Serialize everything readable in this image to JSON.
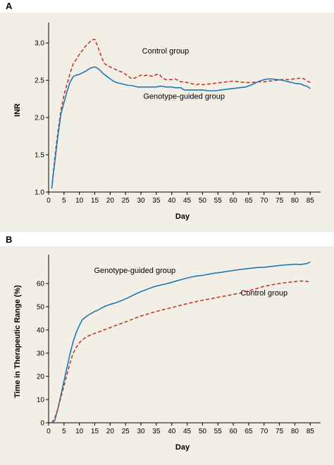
{
  "chart_data": [
    {
      "panel": "A",
      "type": "line",
      "xlabel": "Day",
      "ylabel": "INR",
      "xlim": [
        0,
        87
      ],
      "ylim": [
        1.0,
        3.2
      ],
      "xticks": [
        0,
        5,
        10,
        15,
        20,
        25,
        30,
        35,
        40,
        45,
        50,
        55,
        60,
        65,
        70,
        75,
        80,
        85
      ],
      "yticks": [
        1.0,
        1.5,
        2.0,
        2.5,
        3.0
      ],
      "ytick_labels": [
        "1.0",
        "1.5",
        "2.0",
        "2.5",
        "3.0"
      ],
      "grid": false,
      "series": [
        {
          "name": "Control group",
          "style": "dashed",
          "color": "#c0392b",
          "x": [
            1,
            2,
            3,
            4,
            5,
            6,
            7,
            8,
            9,
            10,
            11,
            12,
            13,
            14,
            15,
            16,
            17,
            18,
            19,
            20,
            21,
            22,
            23,
            24,
            25,
            26,
            27,
            28,
            29,
            30,
            31,
            32,
            33,
            34,
            35,
            36,
            37,
            38,
            39,
            40,
            41,
            42,
            43,
            44,
            45,
            46,
            47,
            48,
            49,
            50,
            52,
            54,
            56,
            58,
            60,
            62,
            64,
            66,
            68,
            70,
            72,
            74,
            76,
            78,
            80,
            82,
            83,
            84,
            85
          ],
          "y": [
            1.05,
            1.45,
            1.8,
            2.1,
            2.3,
            2.45,
            2.6,
            2.72,
            2.78,
            2.85,
            2.9,
            2.96,
            3.0,
            3.04,
            3.05,
            2.95,
            2.83,
            2.73,
            2.7,
            2.68,
            2.66,
            2.64,
            2.62,
            2.61,
            2.58,
            2.55,
            2.52,
            2.53,
            2.55,
            2.57,
            2.56,
            2.57,
            2.56,
            2.55,
            2.58,
            2.58,
            2.53,
            2.51,
            2.51,
            2.51,
            2.52,
            2.5,
            2.48,
            2.48,
            2.47,
            2.46,
            2.45,
            2.44,
            2.45,
            2.44,
            2.45,
            2.46,
            2.47,
            2.48,
            2.49,
            2.48,
            2.47,
            2.47,
            2.48,
            2.48,
            2.49,
            2.5,
            2.51,
            2.51,
            2.52,
            2.53,
            2.52,
            2.49,
            2.47
          ]
        },
        {
          "name": "Genotype-guided group",
          "style": "solid",
          "color": "#1f78b4",
          "x": [
            1,
            2,
            3,
            4,
            5,
            6,
            7,
            8,
            9,
            10,
            11,
            12,
            13,
            14,
            15,
            16,
            17,
            18,
            19,
            20,
            21,
            22,
            23,
            24,
            25,
            26,
            27,
            28,
            29,
            30,
            31,
            32,
            33,
            34,
            35,
            36,
            37,
            38,
            39,
            40,
            41,
            42,
            43,
            44,
            45,
            46,
            47,
            48,
            49,
            50,
            52,
            54,
            56,
            58,
            60,
            62,
            64,
            66,
            68,
            70,
            72,
            74,
            76,
            78,
            80,
            82,
            83,
            84,
            85
          ],
          "y": [
            1.05,
            1.4,
            1.75,
            2.05,
            2.2,
            2.35,
            2.48,
            2.55,
            2.57,
            2.58,
            2.6,
            2.62,
            2.65,
            2.67,
            2.68,
            2.66,
            2.62,
            2.58,
            2.55,
            2.52,
            2.49,
            2.47,
            2.46,
            2.45,
            2.44,
            2.43,
            2.43,
            2.42,
            2.41,
            2.41,
            2.41,
            2.41,
            2.41,
            2.41,
            2.41,
            2.42,
            2.42,
            2.41,
            2.41,
            2.41,
            2.4,
            2.4,
            2.4,
            2.37,
            2.37,
            2.37,
            2.37,
            2.37,
            2.37,
            2.37,
            2.36,
            2.36,
            2.37,
            2.38,
            2.39,
            2.4,
            2.41,
            2.44,
            2.48,
            2.51,
            2.52,
            2.51,
            2.5,
            2.48,
            2.46,
            2.45,
            2.43,
            2.42,
            2.39
          ]
        }
      ],
      "annotations": [
        {
          "text": "Control group",
          "x": 38,
          "y": 2.86
        },
        {
          "text": "Genotype-guided group",
          "x": 44,
          "y": 2.25
        }
      ]
    },
    {
      "panel": "B",
      "type": "line",
      "xlabel": "Day",
      "ylabel": "Time in Therapeutic Range (%)",
      "xlim": [
        0,
        87
      ],
      "ylim": [
        0,
        70
      ],
      "xticks": [
        0,
        5,
        10,
        15,
        20,
        25,
        30,
        35,
        40,
        45,
        50,
        55,
        60,
        65,
        70,
        75,
        80,
        85
      ],
      "yticks": [
        0,
        10,
        20,
        30,
        40,
        50,
        60
      ],
      "ytick_labels": [
        "0",
        "10",
        "20",
        "30",
        "40",
        "50",
        "60"
      ],
      "grid": false,
      "series": [
        {
          "name": "Genotype-guided group",
          "style": "solid",
          "color": "#1f78b4",
          "x": [
            1,
            2,
            3,
            4,
            5,
            6,
            7,
            8,
            9,
            10,
            11,
            12,
            13,
            14,
            15,
            16,
            17,
            18,
            19,
            20,
            22,
            24,
            26,
            28,
            30,
            32,
            34,
            36,
            38,
            40,
            42,
            44,
            46,
            48,
            50,
            52,
            54,
            56,
            58,
            60,
            62,
            64,
            66,
            68,
            70,
            72,
            74,
            76,
            78,
            80,
            82,
            84,
            85
          ],
          "y": [
            0,
            1,
            6,
            12,
            18,
            24,
            30,
            35,
            39,
            42,
            44.5,
            45.5,
            46.5,
            47.2,
            48,
            48.5,
            49.3,
            50,
            50.5,
            51,
            51.8,
            52.8,
            54,
            55.3,
            56.5,
            57.5,
            58.5,
            59.2,
            59.8,
            60.5,
            61.3,
            62,
            62.7,
            63.2,
            63.5,
            64,
            64.5,
            64.8,
            65.2,
            65.6,
            66,
            66.3,
            66.6,
            66.9,
            67,
            67.3,
            67.6,
            67.9,
            68.1,
            68.3,
            68.2,
            68.6,
            69.3
          ]
        },
        {
          "name": "Control group",
          "style": "dashed",
          "color": "#c0392b",
          "x": [
            1,
            2,
            3,
            4,
            5,
            6,
            7,
            8,
            9,
            10,
            11,
            12,
            13,
            14,
            15,
            16,
            17,
            18,
            19,
            20,
            22,
            24,
            26,
            28,
            30,
            32,
            34,
            36,
            38,
            40,
            42,
            44,
            46,
            48,
            50,
            52,
            54,
            56,
            58,
            60,
            62,
            64,
            66,
            68,
            70,
            72,
            74,
            76,
            78,
            80,
            82,
            84,
            85
          ],
          "y": [
            0,
            2,
            6,
            11,
            16,
            21,
            26,
            30,
            32.5,
            34.5,
            35.8,
            36.8,
            37.5,
            38,
            38.5,
            39,
            39.5,
            40,
            40.5,
            41,
            42,
            43,
            44,
            45,
            46,
            46.8,
            47.6,
            48.3,
            49,
            49.6,
            50.3,
            51,
            51.6,
            52.2,
            52.8,
            53.3,
            53.8,
            54.3,
            54.8,
            55.3,
            55.8,
            56.5,
            57.2,
            58,
            58.8,
            59.3,
            59.8,
            60.2,
            60.5,
            60.8,
            61.1,
            60.9,
            60.5
          ]
        }
      ],
      "annotations": [
        {
          "text": "Genotype-guided group",
          "x": 28,
          "y": 64.5
        },
        {
          "text": "Control group",
          "x": 70,
          "y": 54.8
        }
      ]
    }
  ]
}
